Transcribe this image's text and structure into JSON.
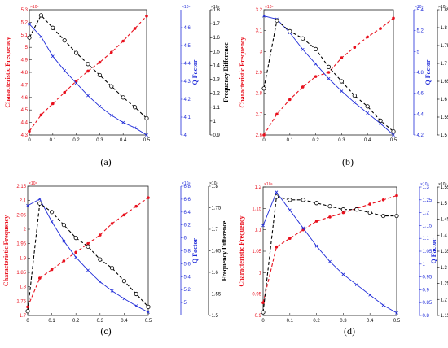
{
  "colors": {
    "characteristic": "#e8101d",
    "q_factor": "#1f2bd8",
    "difference": "#000000",
    "axis": "#222222"
  },
  "chart_data": [
    {
      "type": "line",
      "panel": "(a)",
      "x": [
        0,
        0.05,
        0.1,
        0.15,
        0.2,
        0.25,
        0.3,
        0.35,
        0.4,
        0.45,
        0.5
      ],
      "xticks": [
        "0",
        "0.1",
        "0.2",
        "0.3",
        "0.4",
        "0.5"
      ],
      "xlim": [
        0,
        0.5
      ],
      "left_axis": {
        "label": "Characteristic Frequency",
        "exponent": "×10⁴",
        "ylim": [
          4.3,
          5.3
        ],
        "ticks": [
          "4.3",
          "4.4",
          "4.5",
          "4.6",
          "4.7",
          "4.8",
          "4.9",
          "5",
          "5.1",
          "5.2",
          "5.3"
        ]
      },
      "mid_axis": {
        "label": "Q Factor",
        "exponent": "×10⁴",
        "ylim": [
          4,
          4.7
        ],
        "ticks": [
          "4",
          "4.1",
          "4.2",
          "4.3",
          "4.4",
          "4.5",
          "4.6"
        ]
      },
      "right_axis": {
        "label": "Frequency Difference",
        "exponent": "×10⁴",
        "ylim": [
          0.9,
          1.8
        ],
        "ticks": [
          "0.9",
          "1",
          "1.1",
          "1.2",
          "1.3",
          "1.4",
          "1.5",
          "1.6",
          "1.7",
          "1.8"
        ]
      },
      "series": [
        {
          "axis": "left",
          "values": [
            4.33,
            4.46,
            4.55,
            4.64,
            4.73,
            4.81,
            4.88,
            4.96,
            5.05,
            5.15,
            5.25
          ]
        },
        {
          "axis": "mid",
          "values": [
            4.62,
            4.55,
            4.44,
            4.36,
            4.29,
            4.22,
            4.16,
            4.11,
            4.07,
            4.04,
            4.0
          ]
        },
        {
          "axis": "right",
          "values": [
            1.6,
            1.76,
            1.67,
            1.58,
            1.49,
            1.41,
            1.33,
            1.25,
            1.17,
            1.1,
            1.02
          ]
        }
      ]
    },
    {
      "type": "line",
      "panel": "(b)",
      "x": [
        0,
        0.05,
        0.1,
        0.15,
        0.2,
        0.25,
        0.3,
        0.35,
        0.4,
        0.45,
        0.5
      ],
      "xticks": [
        "0",
        "0.1",
        "0.2",
        "0.3",
        "0.4",
        "0.5"
      ],
      "xlim": [
        0,
        0.5
      ],
      "left_axis": {
        "label": "Characteristic Frequency",
        "exponent": "×10⁴",
        "ylim": [
          2.6,
          3.2
        ],
        "ticks": [
          "2.6",
          "2.7",
          "2.8",
          "2.9",
          "3",
          "3.1",
          "3.2"
        ]
      },
      "mid_axis": {
        "label": "Q Factor",
        "exponent": "×10⁴",
        "ylim": [
          4.2,
          5.4
        ],
        "ticks": [
          "4.2",
          "4.4",
          "4.6",
          "4.8",
          "5",
          "5.2",
          "5.4"
        ]
      },
      "right_axis": {
        "label": "Frequency Difference",
        "exponent": "×10⁴",
        "ylim": [
          1.5,
          1.85
        ],
        "ticks": [
          "1.5",
          "1.55",
          "1.6",
          "1.65",
          "1.7",
          "1.75",
          "1.8",
          "1.85"
        ]
      },
      "series": [
        {
          "axis": "left",
          "values": [
            2.6,
            2.7,
            2.77,
            2.83,
            2.88,
            2.9,
            2.97,
            3.02,
            3.07,
            3.11,
            3.16
          ]
        },
        {
          "axis": "mid",
          "values": [
            5.34,
            5.31,
            5.18,
            5.02,
            4.88,
            4.74,
            4.62,
            4.51,
            4.41,
            4.31,
            4.2
          ]
        },
        {
          "axis": "right",
          "values": [
            1.63,
            1.82,
            1.79,
            1.77,
            1.74,
            1.69,
            1.65,
            1.61,
            1.58,
            1.54,
            1.51
          ]
        }
      ]
    },
    {
      "type": "line",
      "panel": "(c)",
      "x": [
        0,
        0.05,
        0.1,
        0.15,
        0.2,
        0.25,
        0.3,
        0.35,
        0.4,
        0.45,
        0.5
      ],
      "xticks": [
        "0",
        "0.1",
        "0.2",
        "0.3",
        "0.4",
        "0.5"
      ],
      "xlim": [
        0,
        0.5
      ],
      "left_axis": {
        "label": "Characteristic Frequency",
        "exponent": "×10⁴",
        "ylim": [
          1.7,
          2.15
        ],
        "ticks": [
          "1.7",
          "1.75",
          "1.8",
          "1.85",
          "1.9",
          "1.95",
          "2",
          "2.05",
          "2.1",
          "2.15"
        ]
      },
      "mid_axis": {
        "label": "Q Factor",
        "exponent": "×10⁴",
        "ylim": [
          4.8,
          6.8
        ],
        "ticks": [
          "5",
          "5.2",
          "5.4",
          "5.6",
          "5.8",
          "6",
          "6.2",
          "6.4",
          "6.6",
          "6.8"
        ]
      },
      "right_axis": {
        "label": "Frequency Difference",
        "exponent": "×10⁴",
        "ylim": [
          1.5,
          1.8
        ],
        "ticks": [
          "1.5",
          "1.55",
          "1.6",
          "1.65",
          "1.7",
          "1.75",
          "1.8"
        ]
      },
      "series": [
        {
          "axis": "left",
          "values": [
            1.73,
            1.83,
            1.86,
            1.89,
            1.92,
            1.95,
            1.98,
            2.02,
            2.05,
            2.08,
            2.11
          ]
        },
        {
          "axis": "mid",
          "values": [
            6.5,
            6.6,
            6.25,
            5.95,
            5.7,
            5.5,
            5.32,
            5.18,
            5.06,
            4.95,
            4.85
          ]
        },
        {
          "axis": "right",
          "values": [
            1.51,
            1.76,
            1.74,
            1.71,
            1.68,
            1.66,
            1.63,
            1.61,
            1.58,
            1.55,
            1.52
          ]
        }
      ]
    },
    {
      "type": "line",
      "panel": "(d)",
      "x": [
        0,
        0.05,
        0.1,
        0.15,
        0.2,
        0.25,
        0.3,
        0.35,
        0.4,
        0.45,
        0.5
      ],
      "xticks": [
        "0",
        "0.1",
        "0.2",
        "0.3",
        "0.4",
        "0.5"
      ],
      "xlim": [
        0,
        0.5
      ],
      "left_axis": {
        "label": "Characteristic Frequency",
        "exponent": "×10⁴",
        "ylim": [
          0.9,
          1.2
        ],
        "ticks": [
          "0.9",
          "0.95",
          "1",
          "1.05",
          "1.1",
          "1.15",
          "1.2"
        ]
      },
      "mid_axis": {
        "label": "Q Factor",
        "exponent": "×10⁴",
        "ylim": [
          0.8,
          1.3
        ],
        "ticks": [
          "0.8",
          "0.85",
          "0.9",
          "0.95",
          "1",
          "1.05",
          "1.1",
          "1.15",
          "1.2",
          "1.25",
          "1.3"
        ]
      },
      "right_axis": {
        "label": "Frequency Difference",
        "exponent": "×10⁴",
        "ylim": [
          1.15,
          1.55
        ],
        "ticks": [
          "1.15",
          "1.2",
          "1.25",
          "1.3",
          "1.35",
          "1.4",
          "1.45",
          "1.5",
          "1.55"
        ]
      },
      "series": [
        {
          "axis": "left",
          "values": [
            0.93,
            1.06,
            1.08,
            1.1,
            1.12,
            1.13,
            1.14,
            1.15,
            1.16,
            1.17,
            1.18
          ]
        },
        {
          "axis": "mid",
          "values": [
            1.15,
            1.28,
            1.21,
            1.14,
            1.07,
            1.01,
            0.96,
            0.92,
            0.88,
            0.84,
            0.81
          ]
        },
        {
          "axis": "right",
          "values": [
            1.16,
            1.52,
            1.51,
            1.51,
            1.5,
            1.49,
            1.48,
            1.48,
            1.47,
            1.46,
            1.46
          ]
        }
      ]
    }
  ]
}
